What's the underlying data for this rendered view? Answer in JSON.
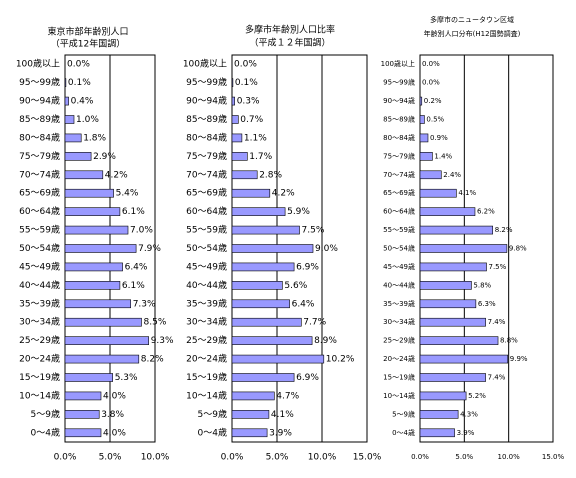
{
  "chart_data": [
    {
      "type": "bar",
      "orientation": "horizontal",
      "title": "東京市部年齢別人口",
      "subtitle": "（平成12年国調）",
      "categories": [
        "100歳以上",
        "95～99歳",
        "90～94歳",
        "85～89歳",
        "80～84歳",
        "75～79歳",
        "70～74歳",
        "65～69歳",
        "60～64歳",
        "55～59歳",
        "50～54歳",
        "45～49歳",
        "40～44歳",
        "35～39歳",
        "30～34歳",
        "25～29歳",
        "20～24歳",
        "15～19歳",
        "10～14歳",
        "5～9歳",
        "0～4歳"
      ],
      "values": [
        0.0,
        0.1,
        0.4,
        1.0,
        1.8,
        2.9,
        4.2,
        5.4,
        6.1,
        7.0,
        7.9,
        6.4,
        6.1,
        7.3,
        8.5,
        9.3,
        8.2,
        5.3,
        4.0,
        3.8,
        4.0
      ],
      "value_labels": [
        "0.0%",
        "0.1%",
        "0.4%",
        "1.0%",
        "1.8%",
        "2.9%",
        "4.2%",
        "5.4%",
        "6.1%",
        "7.0%",
        "7.9%",
        "6.4%",
        "6.1%",
        "7.3%",
        "8.5%",
        "9.3%",
        "8.2%",
        "5.3%",
        "4.0%",
        "3.8%",
        "4.0%"
      ],
      "color": "#9999ff",
      "xlim": [
        0,
        10
      ],
      "xticks": [
        {
          "value": 0,
          "label": "0.0%"
        },
        {
          "value": 5,
          "label": "5.0%"
        },
        {
          "value": 10,
          "label": "10.0%"
        }
      ],
      "grid": true
    },
    {
      "type": "bar",
      "orientation": "horizontal",
      "title": "多摩市年齢別人口比率",
      "subtitle": "（平成１２年国調）",
      "categories": [
        "100歳以上",
        "95～99歳",
        "90～94歳",
        "85～89歳",
        "80～84歳",
        "75～79歳",
        "70～74歳",
        "65～69歳",
        "60～64歳",
        "55～59歳",
        "50～54歳",
        "45～49歳",
        "40～44歳",
        "35～39歳",
        "30～34歳",
        "25～29歳",
        "20～24歳",
        "15～19歳",
        "10～14歳",
        "5～9歳",
        "0～4歳"
      ],
      "values": [
        0.0,
        0.1,
        0.3,
        0.7,
        1.1,
        1.7,
        2.8,
        4.2,
        5.9,
        7.5,
        9.0,
        6.9,
        5.6,
        6.4,
        7.7,
        8.9,
        10.2,
        6.9,
        4.7,
        4.1,
        3.9
      ],
      "value_labels": [
        "0.0%",
        "0.1%",
        "0.3%",
        "0.7%",
        "1.1%",
        "1.7%",
        "2.8%",
        "4.2%",
        "5.9%",
        "7.5%",
        "9.0%",
        "6.9%",
        "5.6%",
        "6.4%",
        "7.7%",
        "8.9%",
        "10.2%",
        "6.9%",
        "4.7%",
        "4.1%",
        "3.9%"
      ],
      "color": "#9999ff",
      "xlim": [
        0,
        15
      ],
      "xticks": [
        {
          "value": 0,
          "label": "0.0%"
        },
        {
          "value": 5,
          "label": "5.0%"
        },
        {
          "value": 10,
          "label": "10.0%"
        },
        {
          "value": 15,
          "label": "15.0%"
        }
      ],
      "grid": true
    },
    {
      "type": "bar",
      "orientation": "horizontal",
      "title": "多摩市のニュータウン区域",
      "subtitle": "年齢別人口分布(H12国勢調査)",
      "categories": [
        "100歳以上",
        "95～99歳",
        "90～94歳",
        "85～89歳",
        "80～84歳",
        "75～79歳",
        "70～74歳",
        "65～69歳",
        "60～64歳",
        "55～59歳",
        "50～54歳",
        "45～49歳",
        "40～44歳",
        "35～39歳",
        "30～34歳",
        "25～29歳",
        "20～24歳",
        "15～19歳",
        "10～14歳",
        "5～9歳",
        "0～4歳"
      ],
      "values": [
        0.0,
        0.0,
        0.2,
        0.5,
        0.9,
        1.4,
        2.4,
        4.1,
        6.2,
        8.2,
        9.8,
        7.5,
        5.8,
        6.3,
        7.4,
        8.8,
        9.9,
        7.4,
        5.2,
        4.3,
        3.9
      ],
      "value_labels": [
        "0.0%",
        "0.0%",
        "0.2%",
        "0.5%",
        "0.9%",
        "1.4%",
        "2.4%",
        "4.1%",
        "6.2%",
        "8.2%",
        "9.8%",
        "7.5%",
        "5.8%",
        "6.3%",
        "7.4%",
        "8.8%",
        "9.9%",
        "7.4%",
        "5.2%",
        "4.3%",
        "3.9%"
      ],
      "color": "#9999ff",
      "xlim": [
        0,
        15
      ],
      "xticks": [
        {
          "value": 0,
          "label": "0.0%"
        },
        {
          "value": 5,
          "label": "5.0%"
        },
        {
          "value": 10,
          "label": "10.0%"
        },
        {
          "value": 15,
          "label": "15.0%"
        }
      ],
      "grid": true
    }
  ]
}
